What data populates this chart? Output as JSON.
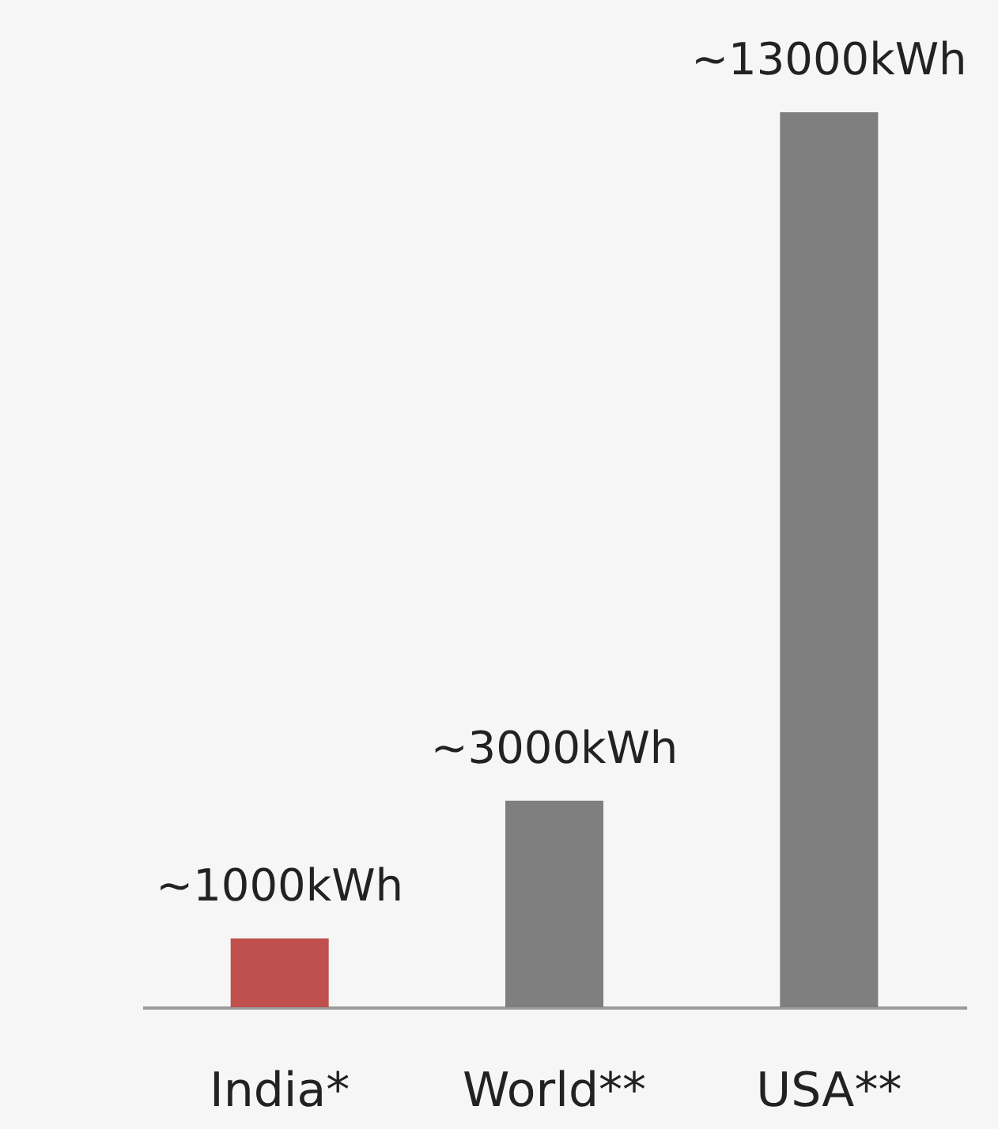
{
  "chart_data": {
    "type": "bar",
    "categories": [
      "India*",
      "World**",
      "USA**"
    ],
    "values": [
      1000,
      3000,
      13000
    ],
    "colors": [
      "#c0504d",
      "#7f7f7f",
      "#7f7f7f"
    ],
    "value_labels": [
      "~1000kWh",
      "~3000kWh",
      "~13000kWh"
    ]
  }
}
